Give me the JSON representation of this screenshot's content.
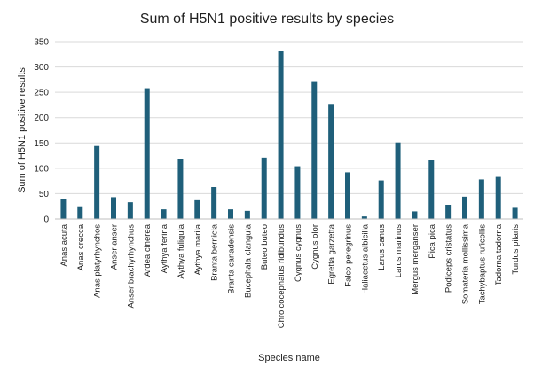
{
  "colors": {
    "bar": "#1f5f7a",
    "background": "#ffffff"
  },
  "chart_data": {
    "type": "bar",
    "title": "Sum of H5N1 positive results by species",
    "xlabel": "Species name",
    "ylabel": "Sum of H5N1 positive results",
    "ylim": [
      0,
      350
    ],
    "yticks": [
      "0",
      "50",
      "100",
      "150",
      "200",
      "250",
      "300",
      "350"
    ],
    "grid": true,
    "categories": [
      "Anas acuta",
      "Anas crecca",
      "Anas platyrhynchos",
      "Anser anser",
      "Anser brachyrhynchus",
      "Ardea cinerea",
      "Aythya ferina",
      "Aythya fuligula",
      "Aythya marila",
      "Branta bernicla",
      "Branta canadensis",
      "Bucephala clangula",
      "Buteo buteo",
      "Chroicocephalus ridibundus",
      "Cygnus cygnus",
      "Cygnus olor",
      "Egretta garzetta",
      "Falco peregrinus",
      "Haliaeetus albicilla",
      "Larus canus",
      "Larus marinus",
      "Mergus merganser",
      "Pica pica",
      "Podiceps cristatus",
      "Somateria mollissima",
      "Tachybaptus ruficollis",
      "Tadorna tadorna",
      "Turdus pilaris"
    ],
    "values": [
      40,
      25,
      144,
      43,
      33,
      258,
      19,
      119,
      37,
      63,
      19,
      16,
      121,
      331,
      104,
      272,
      227,
      92,
      5,
      76,
      151,
      15,
      117,
      28,
      44,
      78,
      83,
      22
    ]
  }
}
